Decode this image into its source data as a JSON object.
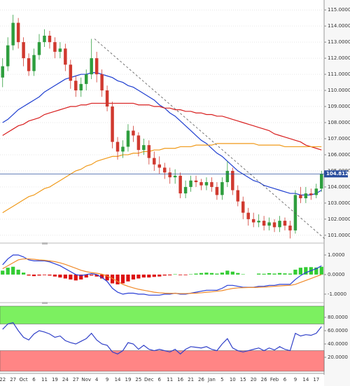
{
  "chart_data": [
    {
      "type": "candlestick",
      "categories": [
        "22",
        null,
        "27",
        null,
        "Oct",
        null,
        "6",
        null,
        "11",
        null,
        "19",
        null,
        "24",
        null,
        "27",
        null,
        "Nov",
        null,
        "4",
        null,
        "9",
        null,
        "14",
        null,
        "19",
        null,
        "25",
        null,
        "Dec",
        null,
        "6",
        null,
        "11",
        null,
        "16",
        null,
        "21",
        null,
        "26",
        null,
        "Jan",
        null,
        "5",
        null,
        "10",
        null,
        "15",
        null,
        "20",
        null,
        "26",
        null,
        "Feb",
        null,
        "6",
        null,
        "9",
        null,
        "14",
        null,
        "17",
        null
      ],
      "open": [
        110.8,
        111.5,
        112.8,
        114.2,
        113.0,
        112.0,
        111.2,
        112.2,
        113.0,
        113.4,
        113.0,
        112.4,
        112.6,
        111.6,
        110.6,
        110.0,
        110.4,
        111.0,
        112.0,
        111.0,
        110.0,
        109.0,
        106.8,
        106.2,
        106.5,
        107.5,
        107.2,
        106.3,
        106.6,
        105.8,
        105.4,
        105.2,
        104.9,
        104.6,
        104.7,
        103.6,
        104.0,
        104.4,
        104.3,
        104.1,
        104.3,
        104.0,
        103.5,
        104.3,
        105.0,
        103.8,
        103.1,
        102.4,
        102.0,
        101.8,
        101.9,
        101.6,
        101.8,
        101.5,
        101.9,
        101.6,
        101.3,
        103.5,
        103.3,
        103.6,
        103.5,
        103.9
      ],
      "high": [
        112.0,
        113.3,
        114.7,
        114.5,
        113.3,
        112.3,
        112.6,
        113.5,
        113.8,
        113.7,
        113.3,
        113.0,
        112.9,
        111.9,
        110.9,
        110.8,
        111.3,
        113.2,
        112.4,
        111.3,
        110.3,
        109.3,
        107.1,
        106.9,
        107.9,
        107.8,
        107.4,
        107.0,
        106.9,
        106.2,
        105.9,
        105.5,
        105.2,
        105.1,
        104.9,
        104.4,
        104.7,
        104.7,
        104.5,
        104.6,
        104.6,
        104.3,
        104.6,
        105.6,
        105.2,
        104.1,
        103.4,
        102.7,
        102.4,
        102.3,
        102.2,
        102.1,
        102.0,
        102.2,
        102.1,
        101.9,
        103.8,
        104.0,
        104.0,
        103.9,
        104.2,
        105.0
      ],
      "low": [
        110.2,
        111.2,
        112.5,
        112.6,
        111.5,
        110.9,
        110.9,
        111.9,
        112.7,
        112.6,
        112.0,
        112.0,
        111.2,
        110.1,
        109.6,
        109.6,
        110.0,
        110.7,
        110.5,
        109.6,
        108.7,
        106.4,
        105.7,
        105.8,
        106.2,
        106.8,
        105.9,
        106.0,
        105.4,
        105.0,
        104.8,
        104.5,
        104.2,
        104.2,
        103.3,
        103.3,
        103.7,
        104.0,
        103.8,
        103.8,
        103.7,
        103.2,
        103.2,
        104.0,
        103.5,
        102.8,
        102.0,
        101.6,
        101.5,
        101.5,
        101.3,
        101.3,
        101.2,
        101.2,
        101.3,
        100.8,
        101.1,
        103.0,
        103.0,
        103.2,
        103.3,
        103.7
      ],
      "close": [
        111.5,
        112.8,
        114.2,
        113.0,
        112.0,
        111.2,
        112.2,
        113.0,
        113.4,
        113.0,
        112.4,
        112.6,
        111.6,
        110.6,
        110.0,
        110.4,
        111.0,
        112.0,
        111.0,
        110.0,
        109.0,
        106.8,
        106.2,
        106.5,
        107.5,
        107.2,
        106.3,
        106.6,
        105.8,
        105.4,
        105.2,
        104.9,
        104.6,
        104.7,
        103.6,
        104.0,
        104.4,
        104.3,
        104.1,
        104.3,
        104.0,
        103.5,
        104.3,
        105.0,
        103.8,
        103.1,
        102.4,
        102.0,
        101.8,
        101.9,
        101.6,
        101.8,
        101.5,
        101.9,
        101.6,
        101.3,
        103.5,
        103.3,
        103.6,
        103.5,
        103.9,
        104.8
      ],
      "up_color": "#2e9e3e",
      "down_color": "#d0392f",
      "series": [
        {
          "color": "#1f3fd0",
          "values": [
            108.0,
            108.2,
            108.5,
            108.8,
            109.0,
            109.2,
            109.4,
            109.6,
            109.9,
            110.1,
            110.3,
            110.5,
            110.7,
            110.8,
            110.9,
            111.0,
            111.0,
            111.1,
            111.1,
            111.0,
            110.9,
            110.8,
            110.6,
            110.5,
            110.3,
            110.2,
            110.0,
            109.8,
            109.6,
            109.4,
            109.1,
            108.9,
            108.6,
            108.4,
            108.1,
            107.8,
            107.5,
            107.2,
            106.9,
            106.7,
            106.4,
            106.1,
            105.9,
            105.6,
            105.3,
            105.0,
            104.8,
            104.6,
            104.4,
            104.3,
            104.1,
            104.0,
            103.9,
            103.8,
            103.7,
            103.6,
            103.6,
            103.5,
            103.5,
            103.5,
            103.6,
            103.8
          ]
        },
        {
          "color": "#d81e1e",
          "values": [
            107.2,
            107.4,
            107.6,
            107.8,
            107.9,
            108.1,
            108.2,
            108.3,
            108.5,
            108.6,
            108.7,
            108.8,
            108.9,
            109.0,
            109.0,
            109.1,
            109.1,
            109.2,
            109.2,
            109.2,
            109.2,
            109.2,
            109.2,
            109.2,
            109.2,
            109.2,
            109.1,
            109.1,
            109.1,
            109.0,
            109.0,
            108.9,
            108.9,
            108.8,
            108.8,
            108.7,
            108.7,
            108.6,
            108.6,
            108.5,
            108.5,
            108.4,
            108.4,
            108.3,
            108.2,
            108.1,
            108.0,
            107.9,
            107.8,
            107.7,
            107.6,
            107.5,
            107.3,
            107.2,
            107.1,
            107.0,
            106.9,
            106.8,
            106.6,
            106.5,
            106.4,
            106.3
          ]
        },
        {
          "color": "#f09a1a",
          "values": [
            102.4,
            102.6,
            102.8,
            103.0,
            103.2,
            103.4,
            103.5,
            103.7,
            103.9,
            104.0,
            104.2,
            104.4,
            104.6,
            104.8,
            105.0,
            105.1,
            105.3,
            105.4,
            105.6,
            105.7,
            105.8,
            105.9,
            105.9,
            106.0,
            106.0,
            106.1,
            106.1,
            106.2,
            106.2,
            106.3,
            106.3,
            106.4,
            106.4,
            106.4,
            106.5,
            106.5,
            106.5,
            106.6,
            106.6,
            106.6,
            106.6,
            106.7,
            106.7,
            106.7,
            106.7,
            106.7,
            106.7,
            106.7,
            106.7,
            106.6,
            106.6,
            106.6,
            106.6,
            106.6,
            106.5,
            106.5,
            106.5,
            106.5,
            106.5,
            106.5,
            106.5,
            106.5
          ]
        }
      ],
      "trendline": {
        "x": [
          17.6,
          61.9
        ],
        "y": [
          113.2,
          100.7
        ]
      },
      "last_price": 104.8123,
      "last_price_color": "#2b4f9e",
      "ylim": [
        100.6,
        115.4
      ],
      "yticks": [
        {
          "value": 101,
          "label": "101.0000"
        },
        {
          "value": 102,
          "label": "102.0000"
        },
        {
          "value": 103,
          "label": "103.0000"
        },
        {
          "value": 104,
          "label": "104.0000"
        },
        {
          "value": 105,
          "label": "105.0000"
        },
        {
          "value": 106,
          "label": "106.0000"
        },
        {
          "value": 107,
          "label": "107.0000"
        },
        {
          "value": 108,
          "label": "108.0000"
        },
        {
          "value": 109,
          "label": "109.0000"
        },
        {
          "value": 110,
          "label": "110.0000"
        },
        {
          "value": 111,
          "label": "111.0000"
        },
        {
          "value": 112,
          "label": "112.0000"
        },
        {
          "value": 113,
          "label": "113.0000"
        },
        {
          "value": 114,
          "label": "114.0000"
        },
        {
          "value": 115,
          "label": "115.0000"
        }
      ],
      "grid": true
    },
    {
      "type": "macd",
      "histogram": [
        0.2,
        0.35,
        0.4,
        0.25,
        0.1,
        -0.05,
        -0.08,
        -0.05,
        -0.03,
        -0.05,
        -0.1,
        -0.15,
        -0.2,
        -0.25,
        -0.3,
        -0.25,
        -0.15,
        -0.05,
        -0.1,
        -0.2,
        -0.3,
        -0.45,
        -0.5,
        -0.45,
        -0.35,
        -0.25,
        -0.2,
        -0.15,
        -0.15,
        -0.12,
        -0.1,
        -0.05,
        -0.04,
        0.02,
        -0.03,
        -0.03,
        0.02,
        0.05,
        0.08,
        0.1,
        0.08,
        0.05,
        0.1,
        0.2,
        0.15,
        0.08,
        0.02,
        0.0,
        0.0,
        0.05,
        0.04,
        0.07,
        0.05,
        0.08,
        0.06,
        0.05,
        0.25,
        0.35,
        0.38,
        0.38,
        0.36,
        0.4
      ],
      "up_color": "#33cc33",
      "down_color": "#dd1111",
      "series": [
        {
          "color": "#2a3fd6",
          "values": [
            0.5,
            0.8,
            1.0,
            1.0,
            0.9,
            0.75,
            0.7,
            0.7,
            0.7,
            0.65,
            0.55,
            0.45,
            0.3,
            0.15,
            0.0,
            -0.05,
            0.0,
            0.05,
            0.0,
            -0.15,
            -0.35,
            -0.7,
            -0.9,
            -1.0,
            -0.95,
            -0.95,
            -1.0,
            -1.0,
            -1.05,
            -1.05,
            -1.05,
            -1.0,
            -1.0,
            -0.95,
            -1.0,
            -1.0,
            -0.95,
            -0.9,
            -0.85,
            -0.8,
            -0.8,
            -0.8,
            -0.7,
            -0.55,
            -0.55,
            -0.6,
            -0.65,
            -0.65,
            -0.65,
            -0.6,
            -0.6,
            -0.55,
            -0.55,
            -0.5,
            -0.5,
            -0.5,
            -0.25,
            -0.05,
            0.1,
            0.2,
            0.3,
            0.45
          ]
        },
        {
          "color": "#f08a2a",
          "values": [
            0.3,
            0.45,
            0.6,
            0.75,
            0.8,
            0.8,
            0.78,
            0.75,
            0.73,
            0.7,
            0.66,
            0.6,
            0.52,
            0.42,
            0.32,
            0.22,
            0.15,
            0.1,
            0.07,
            0.02,
            -0.07,
            -0.2,
            -0.35,
            -0.5,
            -0.6,
            -0.68,
            -0.75,
            -0.8,
            -0.85,
            -0.9,
            -0.93,
            -0.95,
            -0.96,
            -0.96,
            -0.97,
            -0.97,
            -0.96,
            -0.95,
            -0.93,
            -0.9,
            -0.88,
            -0.85,
            -0.82,
            -0.76,
            -0.71,
            -0.68,
            -0.67,
            -0.66,
            -0.66,
            -0.65,
            -0.64,
            -0.62,
            -0.6,
            -0.58,
            -0.56,
            -0.55,
            -0.5,
            -0.4,
            -0.3,
            -0.2,
            -0.1,
            0.0
          ]
        }
      ],
      "ylim": [
        -1.29,
        1.5
      ],
      "yticks": [
        {
          "value": 1,
          "label": "1.0000"
        },
        {
          "value": 0,
          "label": "0.0000"
        },
        {
          "value": -1,
          "label": "-1.0000"
        }
      ]
    },
    {
      "type": "line",
      "series": [
        {
          "color": "#3040c8",
          "values": [
            62,
            70,
            72,
            60,
            50,
            46,
            55,
            60,
            58,
            55,
            50,
            52,
            45,
            42,
            40,
            44,
            48,
            56,
            46,
            40,
            38,
            28,
            25,
            30,
            42,
            40,
            32,
            38,
            32,
            30,
            32,
            30,
            28,
            32,
            25,
            32,
            36,
            35,
            34,
            36,
            32,
            30,
            40,
            48,
            34,
            30,
            28,
            30,
            32,
            34,
            30,
            34,
            31,
            36,
            32,
            30,
            56,
            52,
            54,
            53,
            56,
            66
          ]
        }
      ],
      "overbought": 70,
      "overbought_color": "#7cf060",
      "oversold": 30,
      "oversold_color": "#ff8585",
      "ylim": [
        -1,
        96.8
      ],
      "yticks": [
        {
          "value": 80,
          "label": "80.0000"
        },
        {
          "value": 60,
          "label": "60.0000"
        },
        {
          "value": 40,
          "label": "40.0000"
        },
        {
          "value": 20,
          "label": "20.0000"
        }
      ]
    }
  ]
}
